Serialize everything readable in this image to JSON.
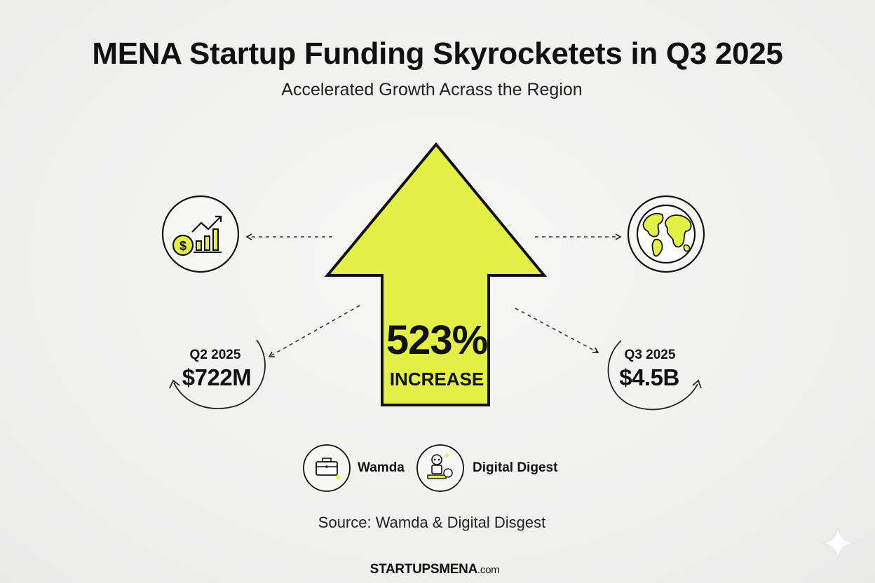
{
  "header": {
    "title": "MENA Startup Funding Skyrocketets in Q3 2025",
    "subtitle": "Accelerated Growth Acrass the Region"
  },
  "center": {
    "percent": "523%",
    "label": "INCREASE",
    "arrow_color": "#e3f146"
  },
  "left_stat": {
    "period": "Q2 2025",
    "value": "$722M",
    "icon": "funding-chart-icon"
  },
  "right_stat": {
    "period": "Q3 2025",
    "value": "$4.5B",
    "icon": "globe-icon"
  },
  "sources": [
    {
      "name": "Wamda",
      "icon": "briefcase-icon"
    },
    {
      "name": "Digital Digest",
      "icon": "robot-icon"
    }
  ],
  "footnote": "Source: Wamda & Digital Disgest",
  "brand": {
    "name": "STARTUPSMENA",
    "domain": ".com"
  },
  "colors": {
    "accent": "#e3f146",
    "ink": "#111111",
    "background": "#f1f1f0"
  }
}
